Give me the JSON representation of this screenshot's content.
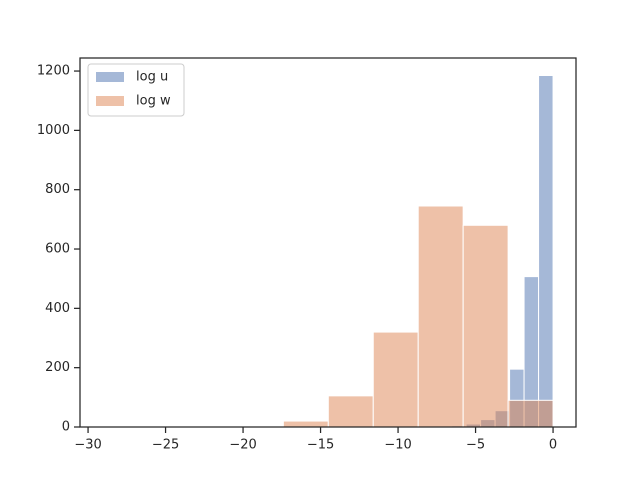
{
  "chart_data": {
    "type": "histogram",
    "series": [
      {
        "name": "log u",
        "color": "#4c72b0",
        "bins": [
          -9.35,
          -8.415,
          -7.48,
          -6.545,
          -5.61,
          -4.675,
          -3.74,
          -2.805,
          -1.87,
          -0.935,
          0
        ],
        "values": [
          1,
          1,
          2,
          4,
          10,
          25,
          55,
          195,
          507,
          1185
        ]
      },
      {
        "name": "log w",
        "color": "#dd8452",
        "bins": [
          -29,
          -26.1,
          -23.2,
          -20.3,
          -17.4,
          -14.5,
          -11.6,
          -8.7,
          -5.8,
          -2.9,
          0
        ],
        "values": [
          1,
          0,
          1,
          3,
          20,
          105,
          320,
          745,
          680,
          90
        ]
      }
    ],
    "opacity": 0.5,
    "xlim": [
      -30.52,
      1.48
    ],
    "ylim": [
      0,
      1244
    ],
    "xticks": [
      {
        "value": -30,
        "label": "−30"
      },
      {
        "value": -25,
        "label": "−25"
      },
      {
        "value": -20,
        "label": "−20"
      },
      {
        "value": -15,
        "label": "−15"
      },
      {
        "value": -10,
        "label": "−10"
      },
      {
        "value": -5,
        "label": "−5"
      },
      0
    ],
    "yticks": [
      0,
      200,
      400,
      600,
      800,
      1000,
      1200
    ],
    "legend": "upper left"
  }
}
